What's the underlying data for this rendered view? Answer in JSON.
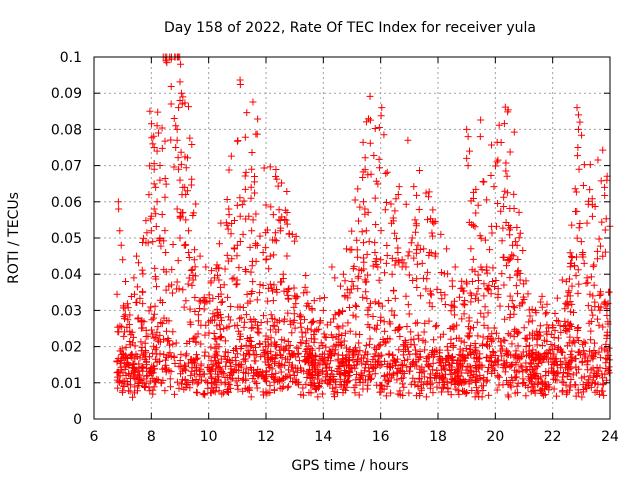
{
  "chart_data": {
    "type": "scatter",
    "title": "Day 158 of 2022, Rate Of TEC Index for receiver yula",
    "xlabel": "GPS time / hours",
    "ylabel": "ROTI / TECUs",
    "xlim": [
      6,
      24
    ],
    "ylim": [
      0,
      0.1
    ],
    "x_ticks": [
      "6",
      "8",
      "10",
      "12",
      "14",
      "16",
      "18",
      "20",
      "22",
      "24"
    ],
    "y_ticks": [
      "0",
      "0.01",
      "0.02",
      "0.03",
      "0.04",
      "0.05",
      "0.06",
      "0.07",
      "0.08",
      "0.09",
      "0.1"
    ],
    "grid": true,
    "marker": "+",
    "color": "#ff0000",
    "data_range_x": [
      6.8,
      24
    ],
    "baseline_typical": 0.012,
    "series": [
      {
        "name": "ROTI",
        "points": [
          [
            6.85,
            0.06
          ],
          [
            6.86,
            0.058
          ],
          [
            6.9,
            0.052
          ],
          [
            6.95,
            0.048
          ],
          [
            7.0,
            0.044
          ],
          [
            7.1,
            0.038
          ],
          [
            7.7,
            0.035
          ],
          [
            7.95,
            0.085
          ],
          [
            8.05,
            0.076
          ],
          [
            8.1,
            0.075
          ],
          [
            8.2,
            0.081
          ],
          [
            8.25,
            0.079
          ],
          [
            8.2,
            0.074
          ],
          [
            8.3,
            0.066
          ],
          [
            8.1,
            0.069
          ],
          [
            8.15,
            0.064
          ],
          [
            8.0,
            0.056
          ],
          [
            8.1,
            0.058
          ],
          [
            8.2,
            0.06
          ],
          [
            8.0,
            0.052
          ],
          [
            8.05,
            0.049
          ],
          [
            8.3,
            0.05
          ],
          [
            8.5,
            0.046
          ],
          [
            8.8,
            0.083
          ],
          [
            8.85,
            0.081
          ],
          [
            8.9,
            0.08
          ],
          [
            8.95,
            0.086
          ],
          [
            9.0,
            0.088
          ],
          [
            9.02,
            0.098
          ],
          [
            9.05,
            0.09
          ],
          [
            9.1,
            0.089
          ],
          [
            9.08,
            0.087
          ],
          [
            8.9,
            0.077
          ],
          [
            8.85,
            0.075
          ],
          [
            8.95,
            0.069
          ],
          [
            9.0,
            0.066
          ],
          [
            9.1,
            0.064
          ],
          [
            9.2,
            0.062
          ],
          [
            8.9,
            0.058
          ],
          [
            9.0,
            0.056
          ],
          [
            9.1,
            0.057
          ],
          [
            9.2,
            0.055
          ],
          [
            9.3,
            0.052
          ],
          [
            9.0,
            0.05
          ],
          [
            9.15,
            0.048
          ],
          [
            9.3,
            0.046
          ],
          [
            9.5,
            0.044
          ],
          [
            9.7,
            0.045
          ],
          [
            9.9,
            0.042
          ],
          [
            10.1,
            0.041
          ],
          [
            10.2,
            0.039
          ],
          [
            10.7,
            0.058
          ],
          [
            10.8,
            0.054
          ],
          [
            11.0,
            0.059
          ],
          [
            11.1,
            0.056
          ],
          [
            11.2,
            0.051
          ],
          [
            11.0,
            0.048
          ],
          [
            10.9,
            0.047
          ],
          [
            11.4,
            0.056
          ],
          [
            11.5,
            0.069
          ],
          [
            11.6,
            0.067
          ],
          [
            11.55,
            0.055
          ],
          [
            11.5,
            0.052
          ],
          [
            11.7,
            0.048
          ],
          [
            11.9,
            0.046
          ],
          [
            12.0,
            0.044
          ],
          [
            12.15,
            0.045
          ],
          [
            12.45,
            0.055
          ],
          [
            12.5,
            0.052
          ],
          [
            12.6,
            0.04
          ],
          [
            12.8,
            0.036
          ],
          [
            13.0,
            0.034
          ],
          [
            13.5,
            0.031
          ],
          [
            14.0,
            0.03
          ],
          [
            14.3,
            0.042
          ],
          [
            14.4,
            0.039
          ],
          [
            14.7,
            0.04
          ],
          [
            15.0,
            0.038
          ],
          [
            15.2,
            0.036
          ],
          [
            15.4,
            0.06
          ],
          [
            15.45,
            0.058
          ],
          [
            15.5,
            0.052
          ],
          [
            15.6,
            0.049
          ],
          [
            15.8,
            0.046
          ],
          [
            15.9,
            0.042
          ],
          [
            16.0,
            0.044
          ],
          [
            16.2,
            0.043
          ],
          [
            16.4,
            0.04
          ],
          [
            16.6,
            0.046
          ],
          [
            16.75,
            0.044
          ],
          [
            16.95,
            0.077
          ],
          [
            17.1,
            0.05
          ],
          [
            17.2,
            0.055
          ],
          [
            17.3,
            0.048
          ],
          [
            17.5,
            0.047
          ],
          [
            17.7,
            0.046
          ],
          [
            17.9,
            0.045
          ],
          [
            18.1,
            0.051
          ],
          [
            18.3,
            0.047
          ],
          [
            18.6,
            0.042
          ],
          [
            18.8,
            0.036
          ],
          [
            19.0,
            0.08
          ],
          [
            19.05,
            0.078
          ],
          [
            19.1,
            0.074
          ],
          [
            19.0,
            0.072
          ],
          [
            19.05,
            0.07
          ],
          [
            19.2,
            0.038
          ],
          [
            19.4,
            0.036
          ],
          [
            19.6,
            0.034
          ],
          [
            19.9,
            0.038
          ],
          [
            20.1,
            0.036
          ],
          [
            20.3,
            0.037
          ],
          [
            20.5,
            0.044
          ],
          [
            20.6,
            0.048
          ],
          [
            20.7,
            0.049
          ],
          [
            20.8,
            0.041
          ],
          [
            21.0,
            0.033
          ],
          [
            21.4,
            0.03
          ],
          [
            21.8,
            0.026
          ],
          [
            22.2,
            0.027
          ],
          [
            22.5,
            0.025
          ],
          [
            22.85,
            0.086
          ],
          [
            22.9,
            0.084
          ],
          [
            22.95,
            0.082
          ],
          [
            22.9,
            0.08
          ],
          [
            22.88,
            0.075
          ],
          [
            22.92,
            0.069
          ],
          [
            22.95,
            0.054
          ],
          [
            23.0,
            0.049
          ],
          [
            23.05,
            0.046
          ],
          [
            23.1,
            0.043
          ],
          [
            23.2,
            0.039
          ],
          [
            23.4,
            0.034
          ],
          [
            23.6,
            0.031
          ],
          [
            23.8,
            0.032
          ],
          [
            23.95,
            0.035
          ]
        ]
      }
    ]
  }
}
